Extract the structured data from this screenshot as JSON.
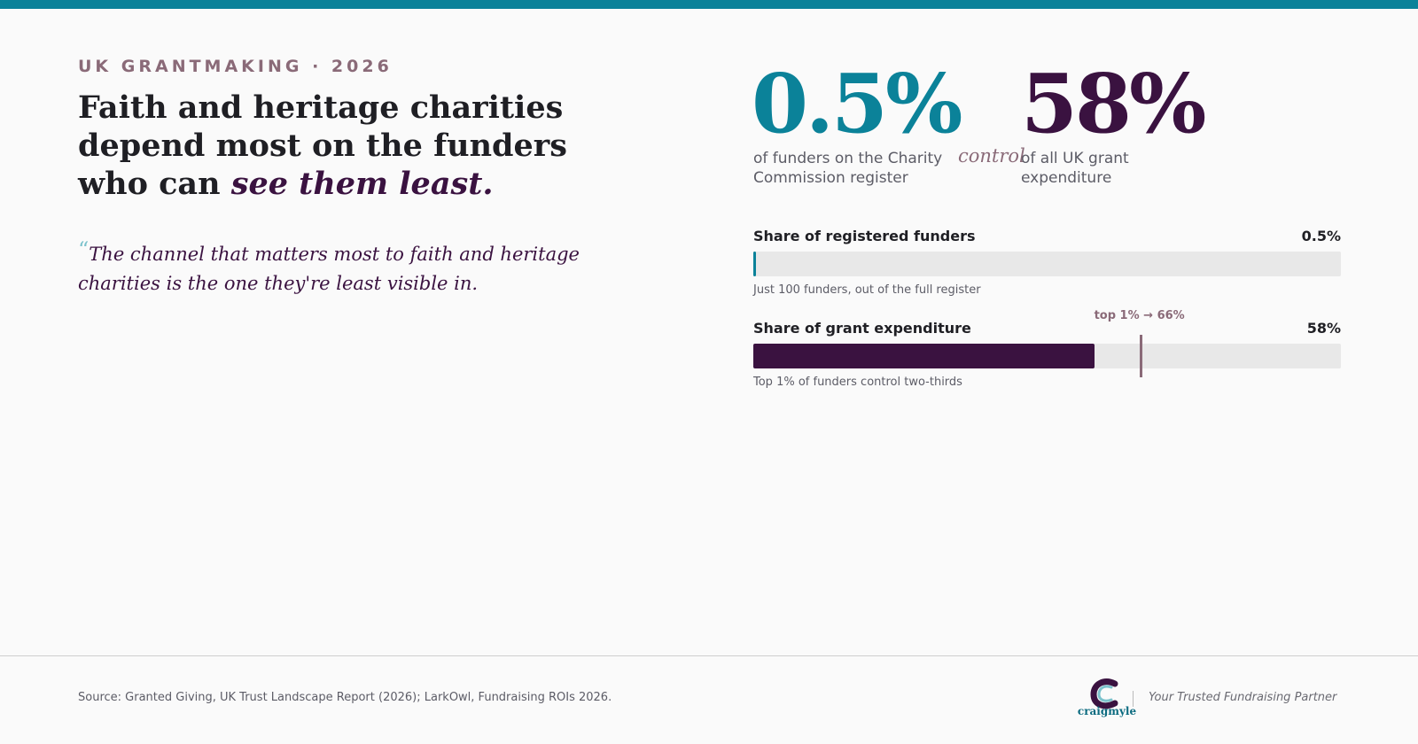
{
  "eyebrow": "UK GRANTMAKING · 2026",
  "headline": {
    "main": "Faith and heritage charities depend most on the funders who can ",
    "emphasis": "see them least."
  },
  "quote": {
    "mark": "“",
    "text": "The channel that matters most to faith and heritage charities is the one they're least visible in."
  },
  "stats": {
    "left": {
      "value": "0.5%",
      "caption": "of funders on the Charity Commission register"
    },
    "connector": "control",
    "right": {
      "value": "58%",
      "caption": "of all UK grant expenditure"
    }
  },
  "chart_data": {
    "type": "bar",
    "orientation": "horizontal",
    "xlim": [
      0,
      100
    ],
    "unit": "%",
    "bars": [
      {
        "label": "Share of registered funders",
        "value": 0.5,
        "value_label": "0.5%",
        "note": "Just 100 funders, out of the full register",
        "color": "#0b8299"
      },
      {
        "label": "Share of grant expenditure",
        "value": 58,
        "value_label": "58%",
        "note": "Top 1% of funders control two-thirds",
        "color": "#3a1240",
        "marker": {
          "value": 66,
          "label": "top 1% → 66%",
          "color": "#8a6a78"
        }
      }
    ]
  },
  "footer": {
    "source": "Source: Granted Giving, UK Trust Landscape Report (2026); LarkOwl, Fundraising ROIs 2026.",
    "logo_word": "craigmyle",
    "tagline": "Your Trusted Fundraising Partner"
  },
  "colors": {
    "accent": "#0b8299",
    "plum": "#3a1240",
    "muted": "#8a6a78",
    "track": "#e8e8e8"
  }
}
